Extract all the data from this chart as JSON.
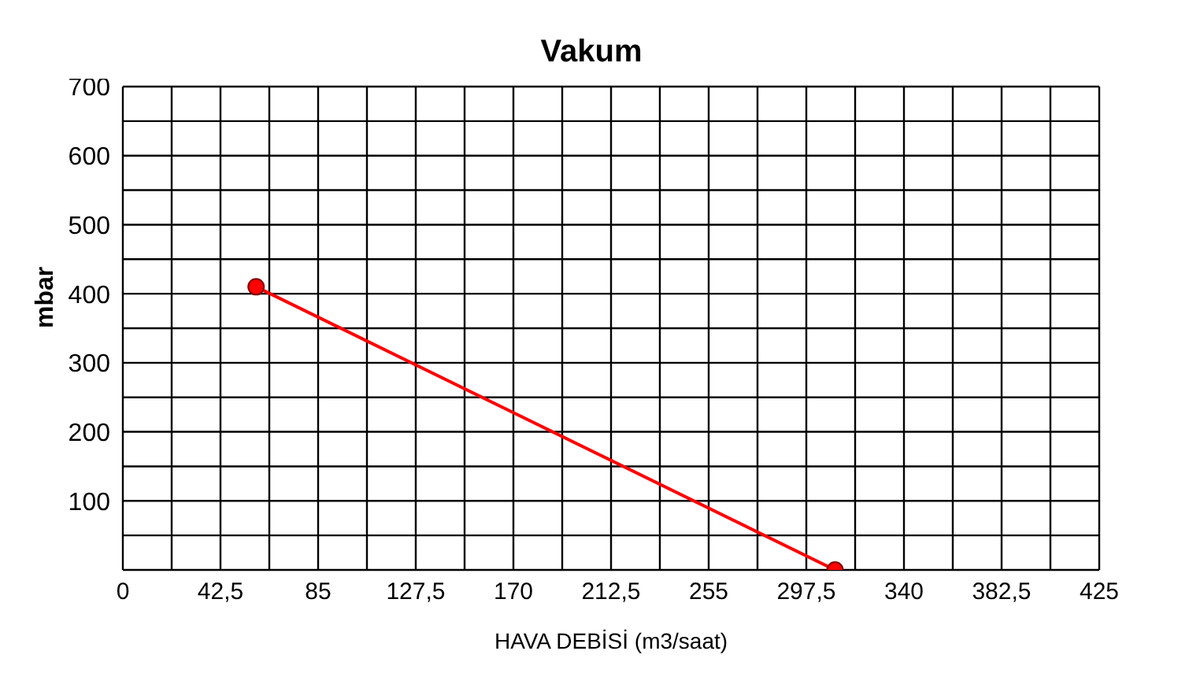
{
  "chart_data": {
    "type": "line",
    "title": "Vakum",
    "xlabel": "HAVA DEBİSİ (m3/saat)",
    "ylabel": "mbar",
    "x": [
      58,
      310
    ],
    "series": [
      {
        "color": "#ff0000",
        "values": [
          410,
          0
        ]
      }
    ],
    "xlim": [
      0,
      425
    ],
    "xticks": [
      0,
      {
        "value": 21.25,
        "label": null
      },
      {
        "value": 42.5,
        "label": "42,5"
      },
      {
        "value": 63.75,
        "label": null
      },
      85,
      {
        "value": 106.25,
        "label": null
      },
      {
        "value": 127.5,
        "label": "127,5"
      },
      {
        "value": 148.75,
        "label": null
      },
      170,
      {
        "value": 191.25,
        "label": null
      },
      {
        "value": 212.5,
        "label": "212,5"
      },
      {
        "value": 233.75,
        "label": null
      },
      255,
      {
        "value": 276.25,
        "label": null
      },
      {
        "value": 297.5,
        "label": "297,5"
      },
      {
        "value": 318.75,
        "label": null
      },
      340,
      {
        "value": 361.25,
        "label": null
      },
      {
        "value": 382.5,
        "label": "382,5"
      },
      {
        "value": 403.75,
        "label": null
      },
      425
    ],
    "ylim": [
      0,
      700
    ],
    "yticks": [
      {
        "value": 0,
        "label": null
      },
      {
        "value": 50,
        "label": null
      },
      100,
      {
        "value": 150,
        "label": null
      },
      200,
      {
        "value": 250,
        "label": null
      },
      300,
      {
        "value": 350,
        "label": null
      },
      400,
      {
        "value": 450,
        "label": null
      },
      500,
      {
        "value": 550,
        "label": null
      },
      600,
      {
        "value": 650,
        "label": null
      },
      700
    ],
    "grid": true,
    "marker": "circle",
    "line_style": "solid"
  }
}
